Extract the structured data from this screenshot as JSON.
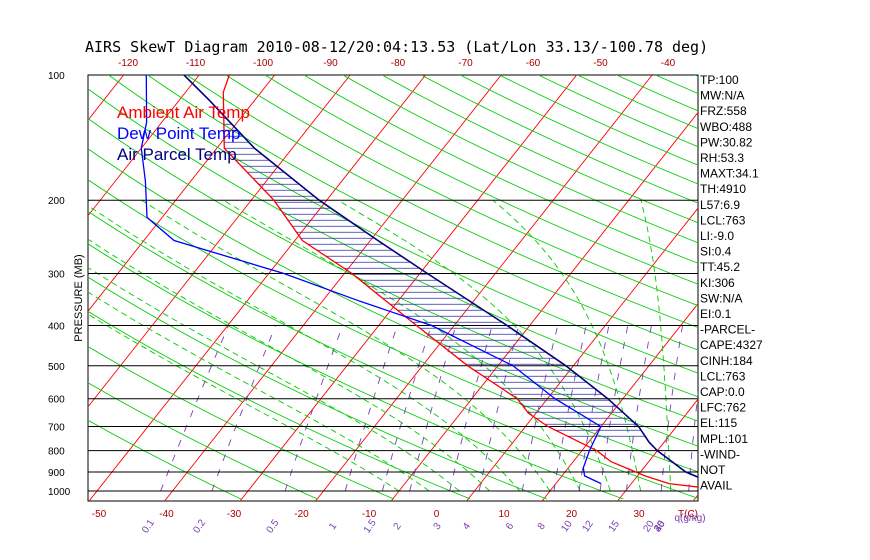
{
  "title": "AIRS SkewT Diagram 2010-08-12/20:04:13.53 (Lat/Lon 33.13/-100.78 deg)",
  "colors": {
    "temp": "#ff0000",
    "dewpoint": "#0000ff",
    "parcel": "#000080",
    "isotherm": "#ff0000",
    "dry_adiabat": "#00cc00",
    "moist_adiabat": "#00cc00",
    "mixing_ratio": "#7a3fb3",
    "hatch": "#2e2ea8",
    "isobar": "#000000",
    "bottom_labels": "#aa0000",
    "mixing_labels": "#7a3fb3"
  },
  "legend": [
    {
      "label": "Ambient Air Temp",
      "color": "#ff0000"
    },
    {
      "label": "Dew Point Temp",
      "color": "#0000ff"
    },
    {
      "label": "Air Parcel Temp",
      "color": "#000080"
    }
  ],
  "axes": {
    "ylabel": "PRESSURE (MB)",
    "pressure_ticks": [
      "100",
      "200",
      "300",
      "400",
      "500",
      "600",
      "700",
      "800",
      "900",
      "1000"
    ],
    "top_temp_ticks": [
      "-120",
      "-110",
      "-100",
      "-90",
      "-80",
      "-70",
      "-60",
      "-50",
      "-40"
    ],
    "bottom_temp_ticks": [
      "-50",
      "-40",
      "-30",
      "-20",
      "-10",
      "0",
      "10",
      "20",
      "30"
    ],
    "bottom_unit": "T(C)",
    "mixing_ratio_ticks": [
      "0.1",
      "0.2",
      "0.5",
      "1",
      "1.5",
      "2",
      "3",
      "4",
      "6",
      "8",
      "10",
      "12",
      "15",
      "20",
      "25",
      "30",
      "40"
    ],
    "mixing_ratio_unit": "q(g/kg)",
    "temperature_range_top": [
      -120,
      -40
    ],
    "temperature_range_bottom": [
      -50,
      30
    ],
    "pressure_range": [
      100,
      1000
    ],
    "y_scale": "log"
  },
  "indices": [
    "TP:100",
    "MW:N/A",
    "FRZ:558",
    "WBO:488",
    "PW:30.82",
    "RH:53.3",
    "MAXT:34.1",
    "TH:4910",
    "L57:6.9",
    "LCL:763",
    "LI:-9.0",
    "SI:0.4",
    "TT:45.2",
    "KI:306",
    "SW:N/A",
    "EI:0.1",
    "-PARCEL-",
    "CAPE:4327",
    "CINH:184",
    "LCL:763",
    "CAP:0.0",
    "LFC:762",
    "EL:115",
    "MPL:101",
    "-WIND-",
    "NOT",
    "AVAIL"
  ],
  "chart_data": {
    "type": "line",
    "title": "AIRS SkewT Diagram 2010-08-12/20:04:13.53 (Lat/Lon 33.13/-100.78 deg)",
    "ylabel": "PRESSURE (MB)",
    "xlabel": "T(C)",
    "y_scale": "log",
    "ylim": [
      1000,
      100
    ],
    "series": [
      {
        "name": "Ambient Air Temp",
        "points": [
          [
            1000,
            34
          ],
          [
            960,
            25
          ],
          [
            920,
            21
          ],
          [
            850,
            15
          ],
          [
            800,
            12
          ],
          [
            700,
            3
          ],
          [
            650,
            -1
          ],
          [
            600,
            -4
          ],
          [
            500,
            -14
          ],
          [
            400,
            -25
          ],
          [
            300,
            -39
          ],
          [
            250,
            -49
          ],
          [
            200,
            -57
          ],
          [
            150,
            -69
          ],
          [
            110,
            -75
          ],
          [
            100,
            -76
          ]
        ]
      },
      {
        "name": "Dew Point Temp",
        "points": [
          [
            960,
            16
          ],
          [
            920,
            13
          ],
          [
            880,
            12
          ],
          [
            800,
            11
          ],
          [
            700,
            10
          ],
          [
            600,
            1
          ],
          [
            500,
            -8
          ],
          [
            400,
            -23
          ],
          [
            350,
            -35
          ],
          [
            300,
            -48
          ],
          [
            250,
            -66
          ],
          [
            220,
            -72
          ],
          [
            180,
            -76
          ],
          [
            150,
            -80
          ],
          [
            130,
            -82
          ],
          [
            100,
            -87
          ]
        ]
      },
      {
        "name": "Air Parcel Temp",
        "points": [
          [
            1000,
            34
          ],
          [
            900,
            26
          ],
          [
            800,
            20
          ],
          [
            763,
            18
          ],
          [
            700,
            15
          ],
          [
            600,
            8
          ],
          [
            500,
            -1
          ],
          [
            400,
            -13
          ],
          [
            300,
            -29
          ],
          [
            250,
            -39
          ],
          [
            200,
            -51
          ],
          [
            150,
            -65
          ],
          [
            115,
            -76
          ],
          [
            100,
            -82
          ]
        ]
      }
    ],
    "cape_hatched": true
  }
}
